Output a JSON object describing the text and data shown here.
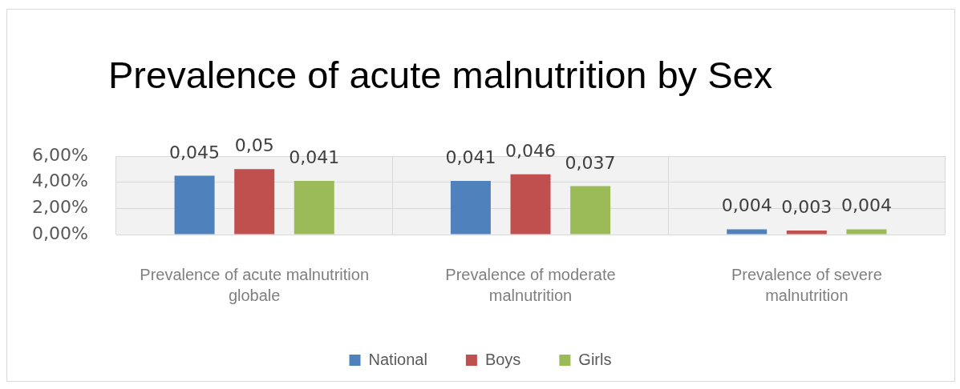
{
  "chart_data": {
    "type": "bar",
    "title": "Prevalence of acute malnutrition by Sex",
    "categories": [
      "Prevalence of acute malnutrition globale",
      "Prevalence of moderate malnutrition",
      "Prevalence of severe malnutrition"
    ],
    "series": [
      {
        "name": "National",
        "color": "#4f81bd",
        "values": [
          0.045,
          0.041,
          0.004
        ],
        "value_labels": [
          "0,045",
          "0,041",
          "0,004"
        ]
      },
      {
        "name": "Boys",
        "color": "#c0504d",
        "values": [
          0.05,
          0.046,
          0.003
        ],
        "value_labels": [
          "0,05",
          "0,046",
          "0,003"
        ]
      },
      {
        "name": "Girls",
        "color": "#9bbb59",
        "values": [
          0.041,
          0.037,
          0.004
        ],
        "value_labels": [
          "0,041",
          "0,037",
          "0,004"
        ]
      }
    ],
    "ylim": [
      0,
      0.06
    ],
    "yticks": [
      {
        "value": 0,
        "label": "0,00%"
      },
      {
        "value": 0.02,
        "label": "2,00%"
      },
      {
        "value": 0.04,
        "label": "4,00%"
      },
      {
        "value": 0.06,
        "label": "6,00%"
      }
    ],
    "grid": true,
    "legend": "bottom"
  }
}
